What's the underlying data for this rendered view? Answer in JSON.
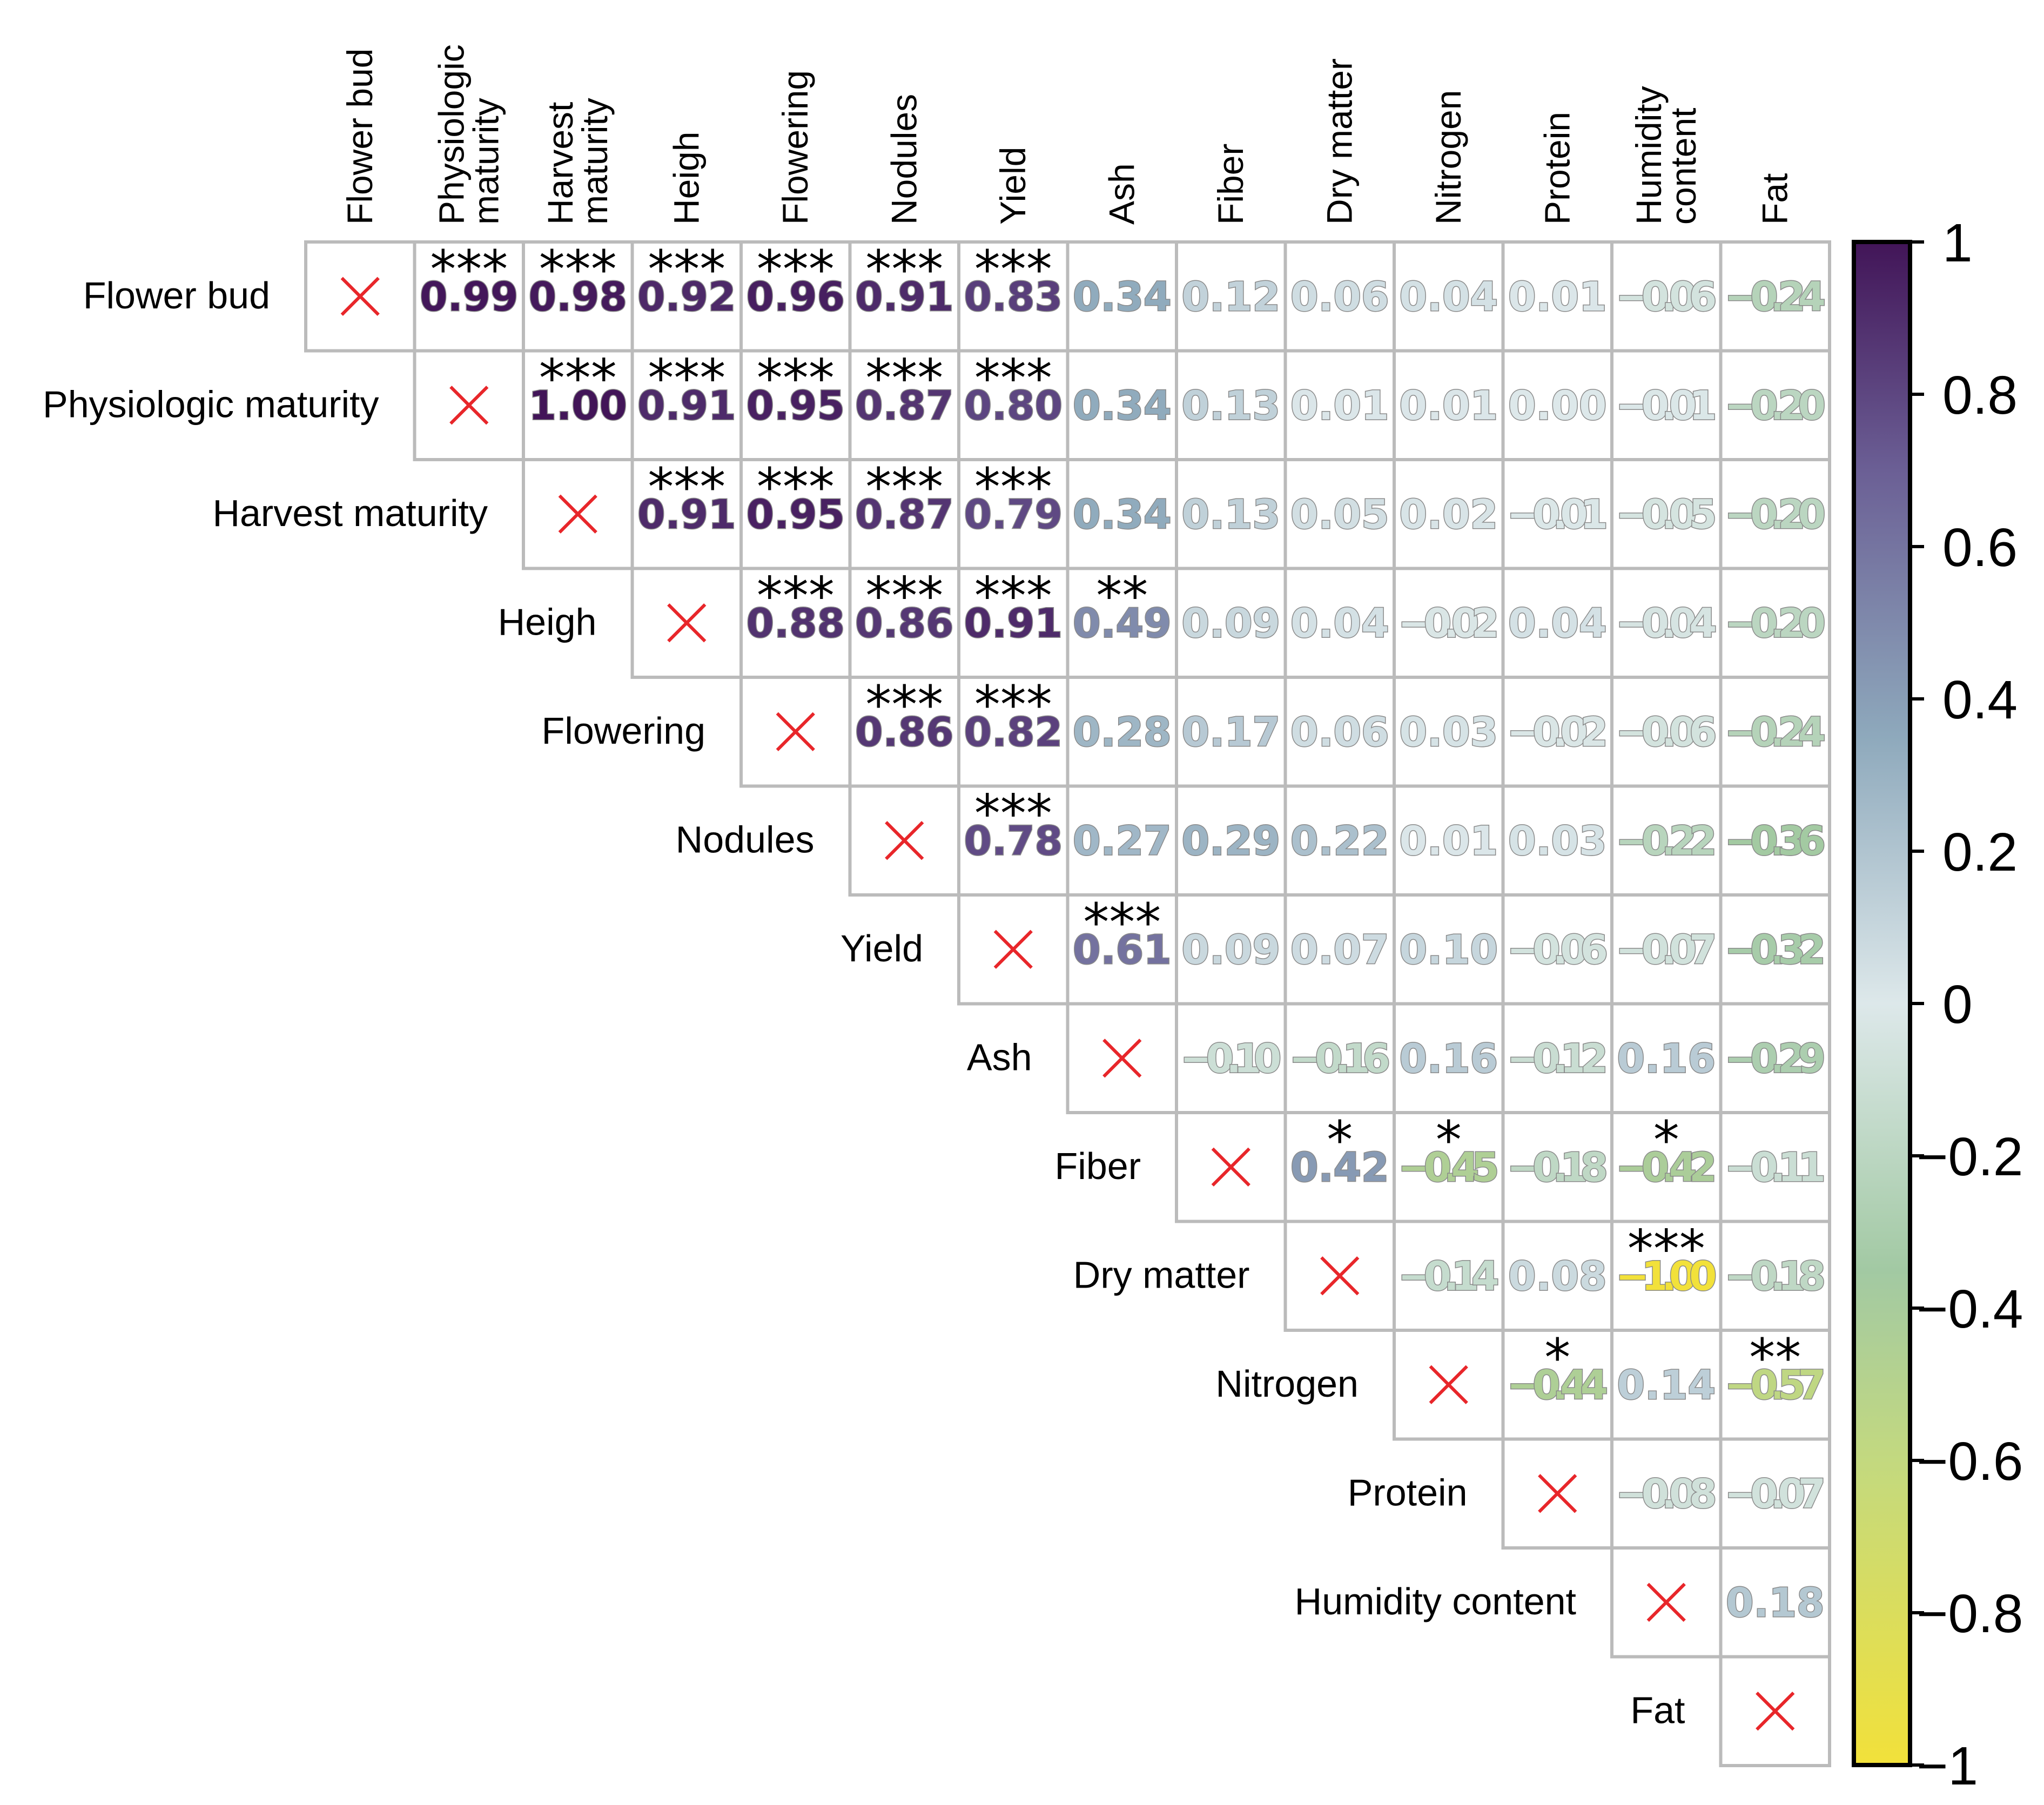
{
  "chart_data": {
    "type": "heatmap",
    "subtype": "upper-triangular correlation matrix",
    "variables": [
      "Flower bud",
      "Physiologic maturity",
      "Harvest maturity",
      "Heigh",
      "Flowering",
      "Nodules",
      "Yield",
      "Ash",
      "Fiber",
      "Dry matter",
      "Nitrogen",
      "Protein",
      "Humidity content",
      "Fat"
    ],
    "column_labels": [
      [
        "Flower bud"
      ],
      [
        "Physiologic",
        "maturity"
      ],
      [
        "Harvest",
        "maturity"
      ],
      [
        "Heigh"
      ],
      [
        "Flowering"
      ],
      [
        "Nodules"
      ],
      [
        "Yield"
      ],
      [
        "Ash"
      ],
      [
        "Fiber"
      ],
      [
        "Dry matter"
      ],
      [
        "Nitrogen"
      ],
      [
        "Protein"
      ],
      [
        "Humidity",
        "content"
      ],
      [
        "Fat"
      ]
    ],
    "diagonal_marker": "×",
    "cells": [
      [
        null,
        "0.99",
        "0.98",
        "0.92",
        "0.96",
        "0.91",
        "0.83",
        "0.34",
        "0.12",
        "0.06",
        "0.04",
        "0.01",
        "−0.06",
        "−0.24"
      ],
      [
        null,
        null,
        "1.00",
        "0.91",
        "0.95",
        "0.87",
        "0.80",
        "0.34",
        "0.13",
        "0.01",
        "0.01",
        "0.00",
        "−0.01",
        "−0.20"
      ],
      [
        null,
        null,
        null,
        "0.91",
        "0.95",
        "0.87",
        "0.79",
        "0.34",
        "0.13",
        "0.05",
        "0.02",
        "−0.01",
        "−0.05",
        "−0.20"
      ],
      [
        null,
        null,
        null,
        null,
        "0.88",
        "0.86",
        "0.91",
        "0.49",
        "0.09",
        "0.04",
        "−0.02",
        "0.04",
        "−0.04",
        "−0.20"
      ],
      [
        null,
        null,
        null,
        null,
        null,
        "0.86",
        "0.82",
        "0.28",
        "0.17",
        "0.06",
        "0.03",
        "−0.02",
        "−0.06",
        "−0.24"
      ],
      [
        null,
        null,
        null,
        null,
        null,
        null,
        "0.78",
        "0.27",
        "0.29",
        "0.22",
        "0.01",
        "0.03",
        "−0.22",
        "−0.36"
      ],
      [
        null,
        null,
        null,
        null,
        null,
        null,
        null,
        "0.61",
        "0.09",
        "0.07",
        "0.10",
        "−0.06",
        "−0.07",
        "−0.32"
      ],
      [
        null,
        null,
        null,
        null,
        null,
        null,
        null,
        null,
        "−0.10",
        "−0.16",
        "0.16",
        "−0.12",
        "0.16",
        "−0.29"
      ],
      [
        null,
        null,
        null,
        null,
        null,
        null,
        null,
        null,
        null,
        "0.42",
        "−0.45",
        "−0.18",
        "−0.42",
        "−0.11"
      ],
      [
        null,
        null,
        null,
        null,
        null,
        null,
        null,
        null,
        null,
        null,
        "−0.14",
        "0.08",
        "−1.00",
        "−0.18"
      ],
      [
        null,
        null,
        null,
        null,
        null,
        null,
        null,
        null,
        null,
        null,
        null,
        "−0.44",
        "0.14",
        "−0.57"
      ],
      [
        null,
        null,
        null,
        null,
        null,
        null,
        null,
        null,
        null,
        null,
        null,
        null,
        "−0.08",
        "−0.07"
      ],
      [
        null,
        null,
        null,
        null,
        null,
        null,
        null,
        null,
        null,
        null,
        null,
        null,
        null,
        "0.18"
      ],
      [
        null,
        null,
        null,
        null,
        null,
        null,
        null,
        null,
        null,
        null,
        null,
        null,
        null,
        null
      ]
    ],
    "significance": [
      [
        "",
        "***",
        "***",
        "***",
        "***",
        "***",
        "***",
        "",
        "",
        "",
        "",
        "",
        "",
        ""
      ],
      [
        "",
        "",
        "***",
        "***",
        "***",
        "***",
        "***",
        "",
        "",
        "",
        "",
        "",
        "",
        ""
      ],
      [
        "",
        "",
        "",
        "***",
        "***",
        "***",
        "***",
        "",
        "",
        "",
        "",
        "",
        "",
        ""
      ],
      [
        "",
        "",
        "",
        "",
        "***",
        "***",
        "***",
        "**",
        "",
        "",
        "",
        "",
        "",
        ""
      ],
      [
        "",
        "",
        "",
        "",
        "",
        "***",
        "***",
        "",
        "",
        "",
        "",
        "",
        "",
        ""
      ],
      [
        "",
        "",
        "",
        "",
        "",
        "",
        "***",
        "",
        "",
        "",
        "",
        "",
        "",
        ""
      ],
      [
        "",
        "",
        "",
        "",
        "",
        "",
        "",
        "***",
        "",
        "",
        "",
        "",
        "",
        ""
      ],
      [
        "",
        "",
        "",
        "",
        "",
        "",
        "",
        "",
        "",
        "",
        "",
        "",
        "",
        ""
      ],
      [
        "",
        "",
        "",
        "",
        "",
        "",
        "",
        "",
        "",
        "*",
        "*",
        "",
        "*",
        ""
      ],
      [
        "",
        "",
        "",
        "",
        "",
        "",
        "",
        "",
        "",
        "",
        "",
        "",
        "***",
        ""
      ],
      [
        "",
        "",
        "",
        "",
        "",
        "",
        "",
        "",
        "",
        "",
        "",
        "*",
        "",
        "**"
      ],
      [
        "",
        "",
        "",
        "",
        "",
        "",
        "",
        "",
        "",
        "",
        "",
        "",
        "",
        ""
      ],
      [
        "",
        "",
        "",
        "",
        "",
        "",
        "",
        "",
        "",
        "",
        "",
        "",
        "",
        ""
      ],
      [
        "",
        "",
        "",
        "",
        "",
        "",
        "",
        "",
        "",
        "",
        "",
        "",
        "",
        ""
      ]
    ],
    "colorbar": {
      "range": [
        -1,
        1
      ],
      "ticks": [
        "1",
        "0.8",
        "0.6",
        "0.4",
        "0.2",
        "0",
        "−0.2",
        "−0.4",
        "−0.6",
        "−0.8",
        "−1"
      ],
      "tick_values": [
        1,
        0.8,
        0.6,
        0.4,
        0.2,
        0,
        -0.2,
        -0.4,
        -0.6,
        -0.8,
        -1
      ],
      "colors": [
        "#f2e13a",
        "#c3d97f",
        "#a2c9a3",
        "#dde8ea",
        "#8ea9bc",
        "#6b5f95",
        "#421558"
      ],
      "color_stops": [
        -1,
        -0.6,
        -0.35,
        0,
        0.35,
        0.7,
        1
      ]
    }
  }
}
